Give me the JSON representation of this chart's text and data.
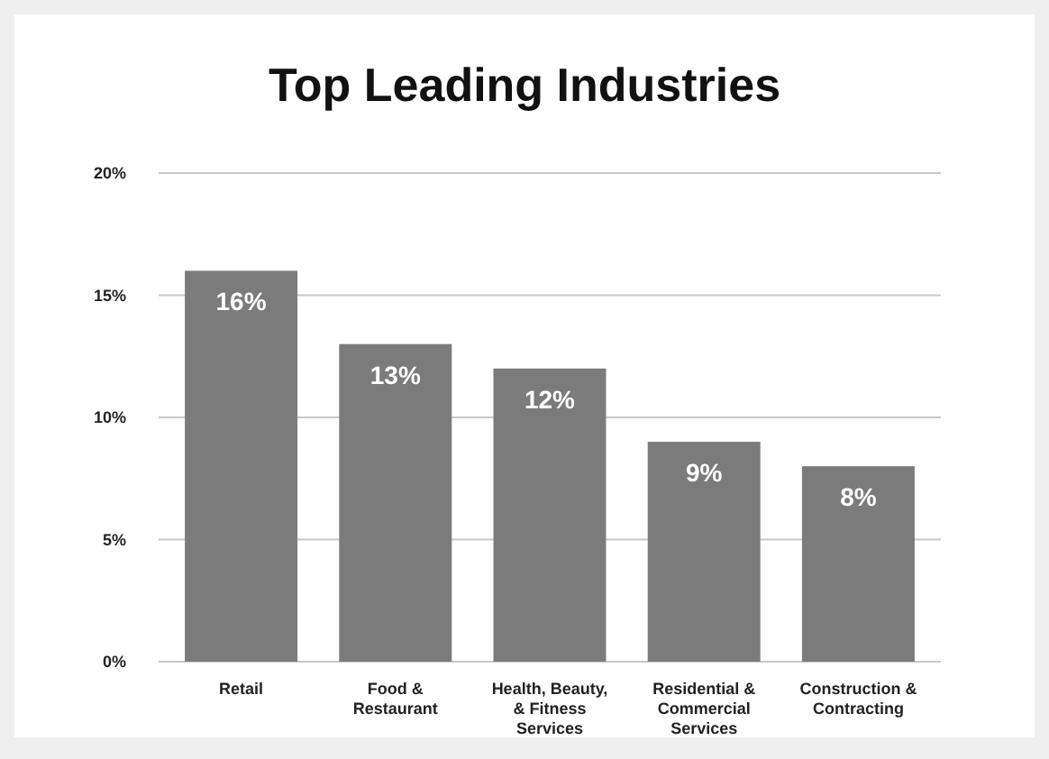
{
  "chart_data": {
    "type": "bar",
    "title": "Top Leading Industries",
    "categories": [
      "Retail",
      "Food & Restaurant",
      "Health, Beauty, & Fitness Services",
      "Residential & Commercial Services",
      "Construction & Contracting"
    ],
    "values": [
      16,
      13,
      12,
      9,
      8
    ],
    "color": "#7b7b7b",
    "ylim": [
      0,
      20
    ],
    "yticks": [
      {
        "value": 0,
        "label": "0%"
      },
      {
        "value": 5,
        "label": "5%"
      },
      {
        "value": 10,
        "label": "10%"
      },
      {
        "value": 15,
        "label": "15%"
      },
      {
        "value": 20,
        "label": "20%"
      }
    ],
    "value_labels": [
      "16%",
      "13%",
      "12%",
      "9%",
      "8%"
    ],
    "grid": "y"
  }
}
